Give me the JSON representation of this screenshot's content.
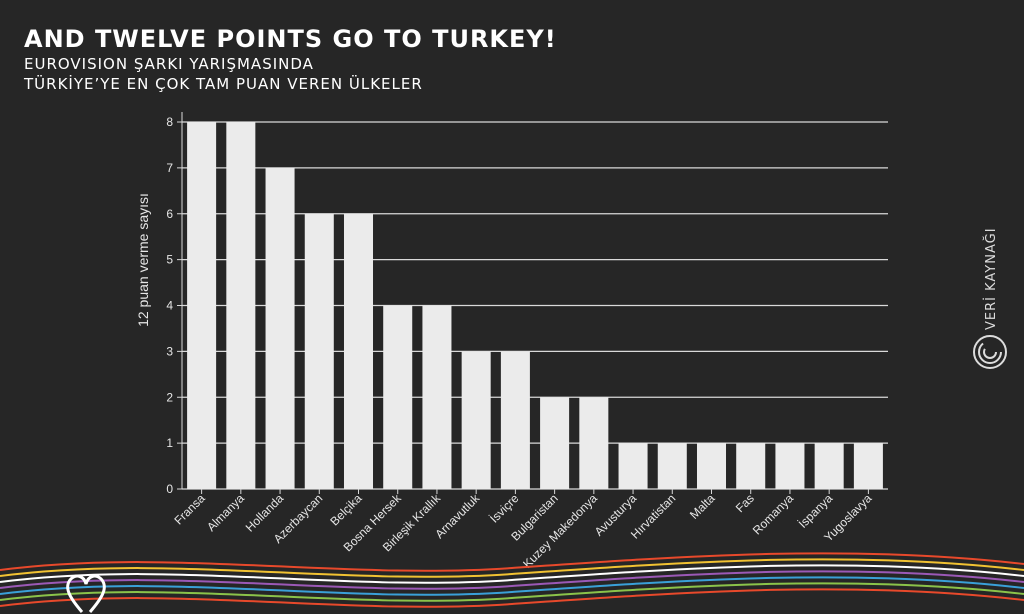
{
  "header": {
    "title": "AND TWELVE POINTS GO TO TURKEY!",
    "subtitle_line1": "EUROVISION ŞARKI YARIŞMASINDA",
    "subtitle_line2": "TÜRKİYE’YE EN ÇOK TAM PUAN VEREN ÜLKELER"
  },
  "brand": {
    "name": "VERİ KAYNAĞI"
  },
  "colors": {
    "background": "#262626",
    "bar": "#ebebeb",
    "grid": "#d9d9d9",
    "wave_colors": [
      "#e8492b",
      "#f1c232",
      "#ffffff",
      "#9b59b6",
      "#3aa0d8",
      "#8bc34a",
      "#e8492b"
    ]
  },
  "chart_data": {
    "type": "bar",
    "categories": [
      "Fransa",
      "Almanya",
      "Hollanda",
      "Azerbaycan",
      "Belçika",
      "Bosna Hersek",
      "Birleşik Krallık",
      "Arnavutluk",
      "İsviçre",
      "Bulgaristan",
      "Kuzey Makedonya",
      "Avusturya",
      "Hırvatistan",
      "Malta",
      "Fas",
      "Romanya",
      "İspanya",
      "Yugoslavya"
    ],
    "values": [
      8,
      8,
      7,
      6,
      6,
      4,
      4,
      3,
      3,
      2,
      2,
      1,
      1,
      1,
      1,
      1,
      1,
      1
    ],
    "title": "",
    "xlabel": "",
    "ylabel": "12 puan verme sayısı",
    "ylim": [
      0,
      8
    ],
    "yticks": [
      0,
      1,
      2,
      3,
      4,
      5,
      6,
      7,
      8
    ],
    "grid": "horizontal"
  }
}
